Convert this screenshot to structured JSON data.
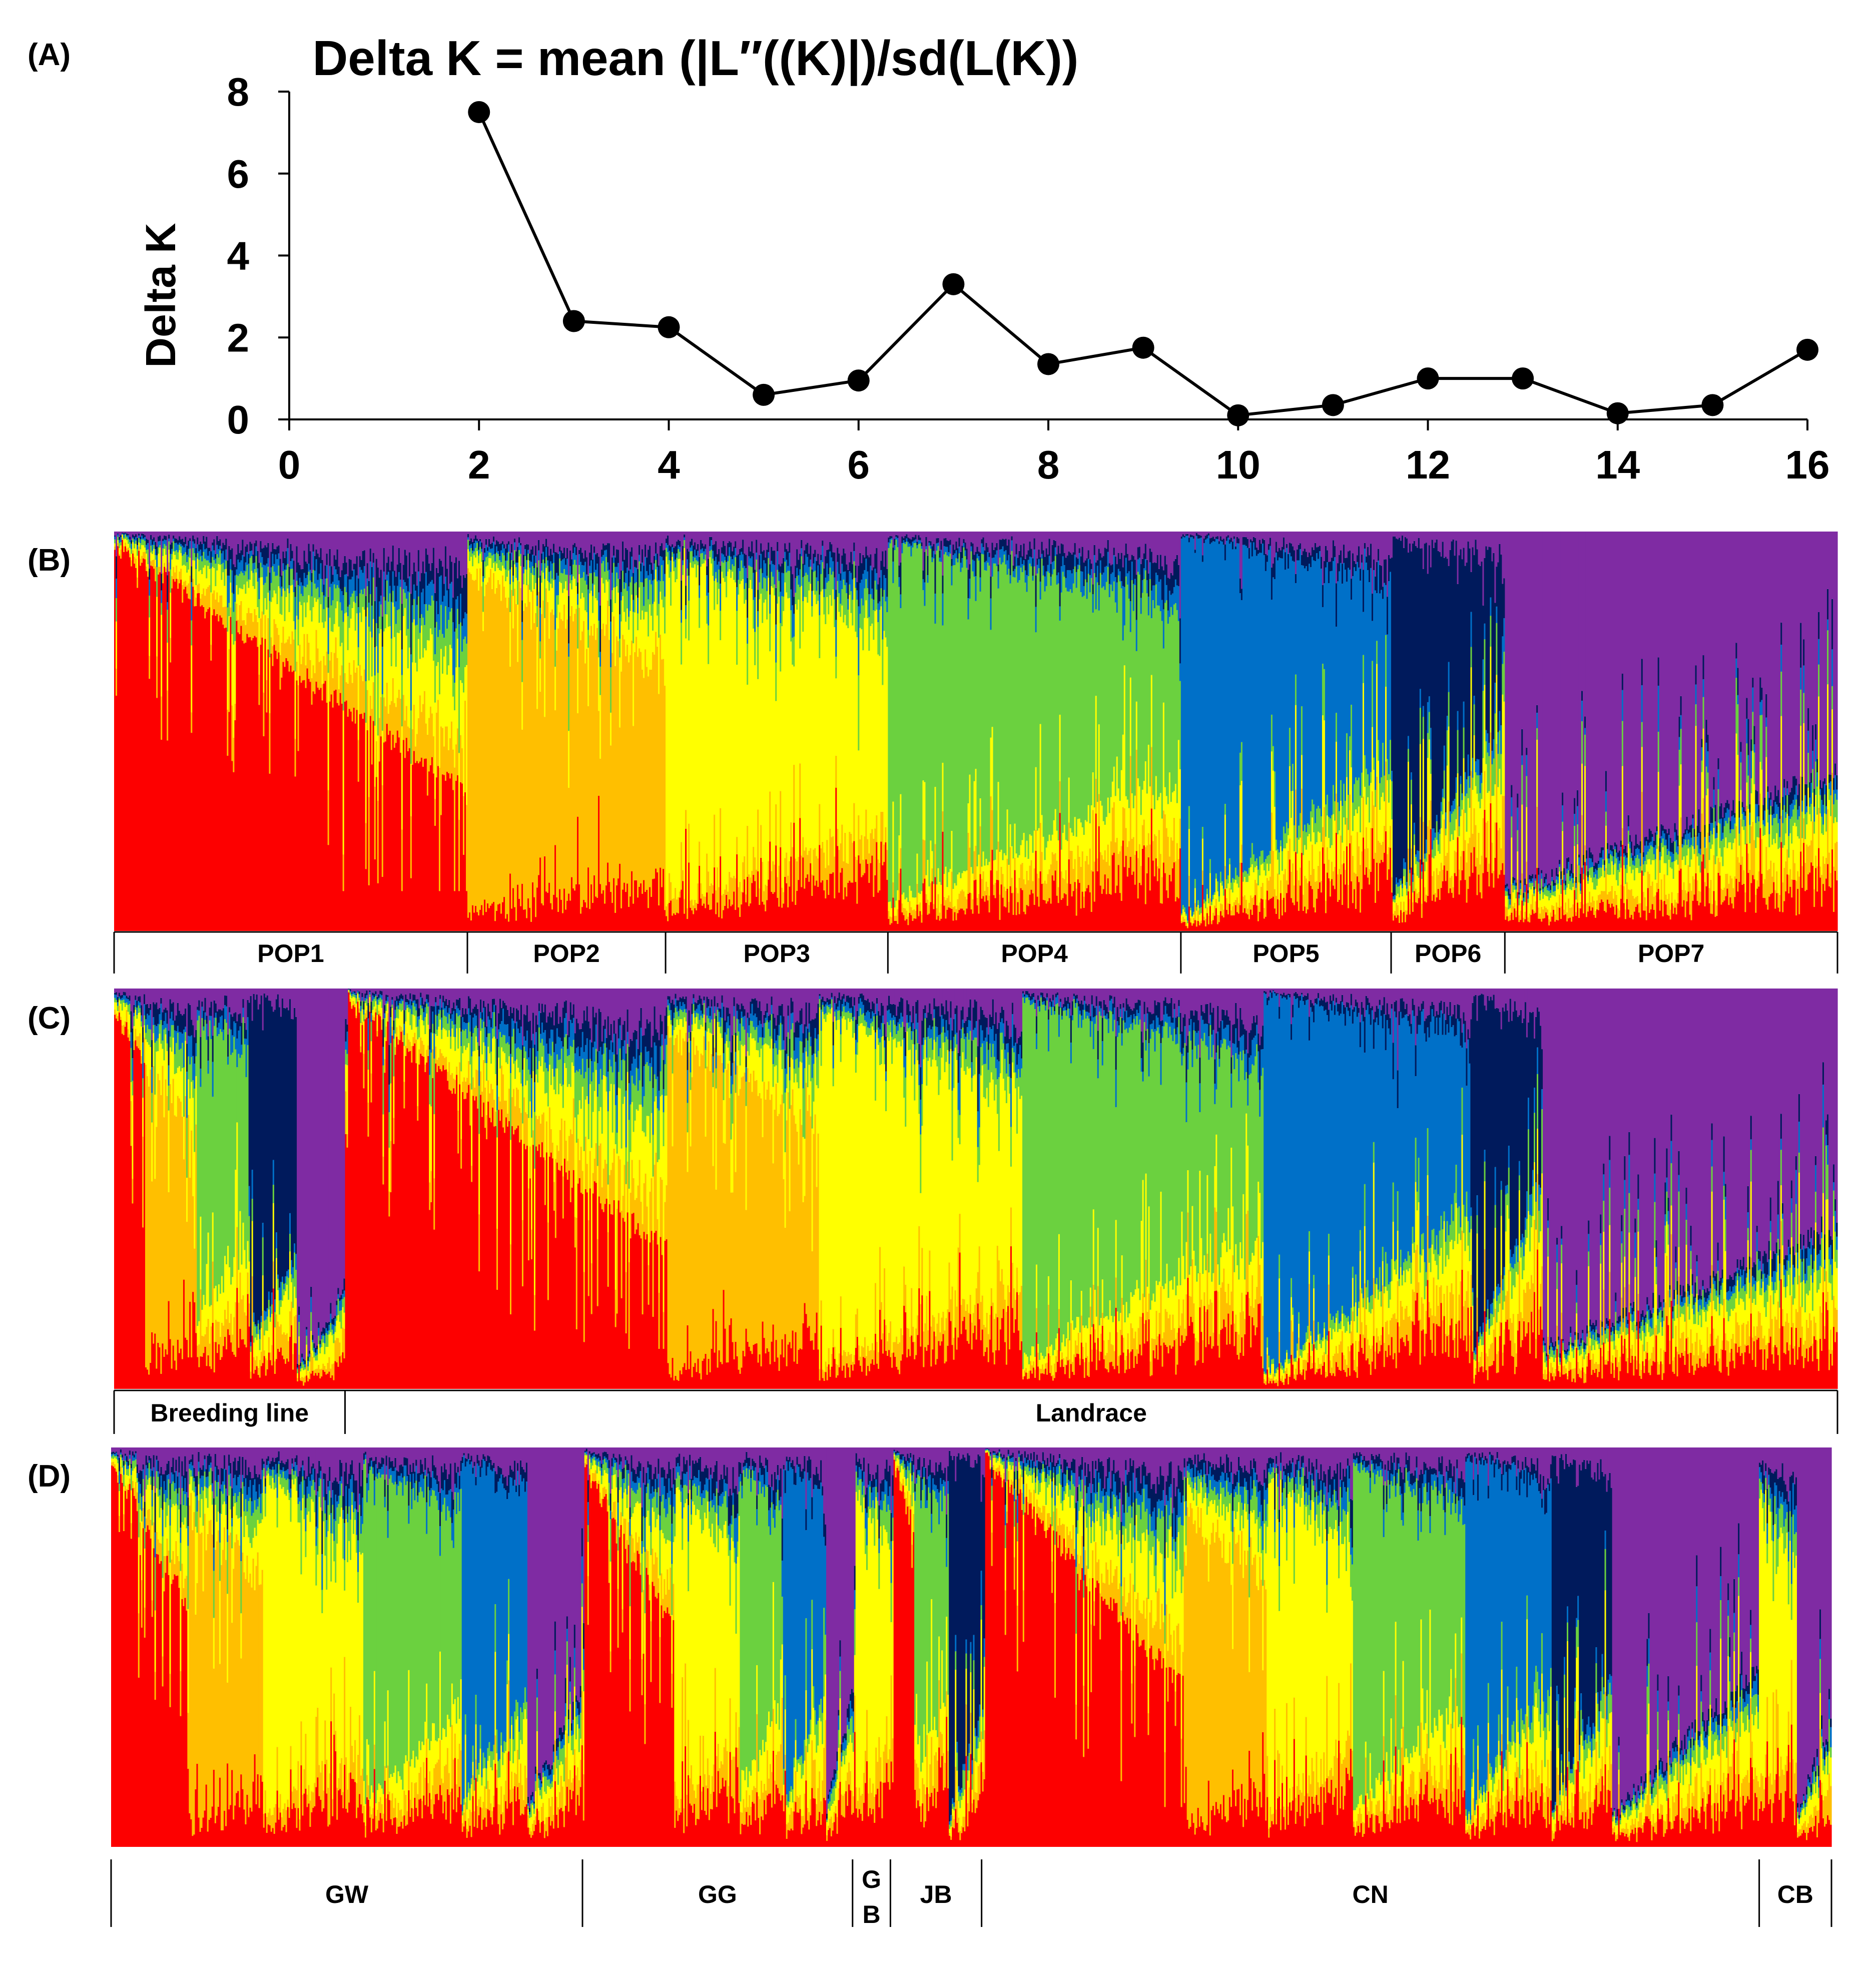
{
  "colors": {
    "red": "#fd0000",
    "orange": "#ffbf00",
    "yellow": "#ffff00",
    "green": "#6bd13f",
    "blue": "#0070c8",
    "navy": "#001a5c",
    "purple": "#7f2ba3",
    "axis": "#000000"
  },
  "chart_data": [
    {
      "type": "line",
      "panel_label": "(A)",
      "title": "Delta K = mean (|L″((K)|)/sd(L(K))",
      "xlabel": "",
      "ylabel": "Delta K",
      "xlim": [
        0,
        16
      ],
      "ylim": [
        0,
        8
      ],
      "xticks": [
        0,
        2,
        4,
        6,
        8,
        10,
        12,
        14,
        16
      ],
      "yticks": [
        0,
        2,
        4,
        6,
        8
      ],
      "grid": false,
      "x": [
        2,
        3,
        4,
        5,
        6,
        7,
        8,
        9,
        10,
        11,
        12,
        13,
        14,
        15,
        16
      ],
      "y": [
        7.5,
        2.4,
        2.25,
        0.6,
        0.95,
        3.3,
        1.35,
        1.75,
        0.1,
        0.35,
        1.0,
        1.0,
        0.15,
        0.35,
        1.7
      ]
    },
    {
      "type": "bar",
      "stacked": true,
      "panel_label": "(B)",
      "ancestry_colors": [
        "red",
        "orange",
        "yellow",
        "green",
        "blue",
        "navy",
        "purple"
      ],
      "groups": [
        {
          "label": "POP1",
          "share": 0.205
        },
        {
          "label": "POP2",
          "share": 0.115
        },
        {
          "label": "POP3",
          "share": 0.129
        },
        {
          "label": "POP4",
          "share": 0.17
        },
        {
          "label": "POP5",
          "share": 0.122
        },
        {
          "label": "POP6",
          "share": 0.066
        },
        {
          "label": "POP7",
          "share": 0.193
        }
      ]
    },
    {
      "type": "bar",
      "stacked": true,
      "panel_label": "(C)",
      "ancestry_colors": [
        "red",
        "orange",
        "yellow",
        "green",
        "blue",
        "navy",
        "purple"
      ],
      "groups": [
        {
          "label": "Breeding line",
          "share": 0.134
        },
        {
          "label": "Landrace",
          "share": 0.866
        }
      ]
    },
    {
      "type": "bar",
      "stacked": true,
      "panel_label": "(D)",
      "ancestry_colors": [
        "red",
        "orange",
        "yellow",
        "green",
        "blue",
        "navy",
        "purple"
      ],
      "groups": [
        {
          "label": "GW",
          "share": 0.274
        },
        {
          "label": "GG",
          "share": 0.157
        },
        {
          "label": "GB",
          "label_lines": [
            "G",
            "B"
          ],
          "share": 0.022
        },
        {
          "label": "JB",
          "share": 0.053
        },
        {
          "label": "CN",
          "share": 0.452
        },
        {
          "label": "CB",
          "share": 0.042
        }
      ]
    }
  ]
}
